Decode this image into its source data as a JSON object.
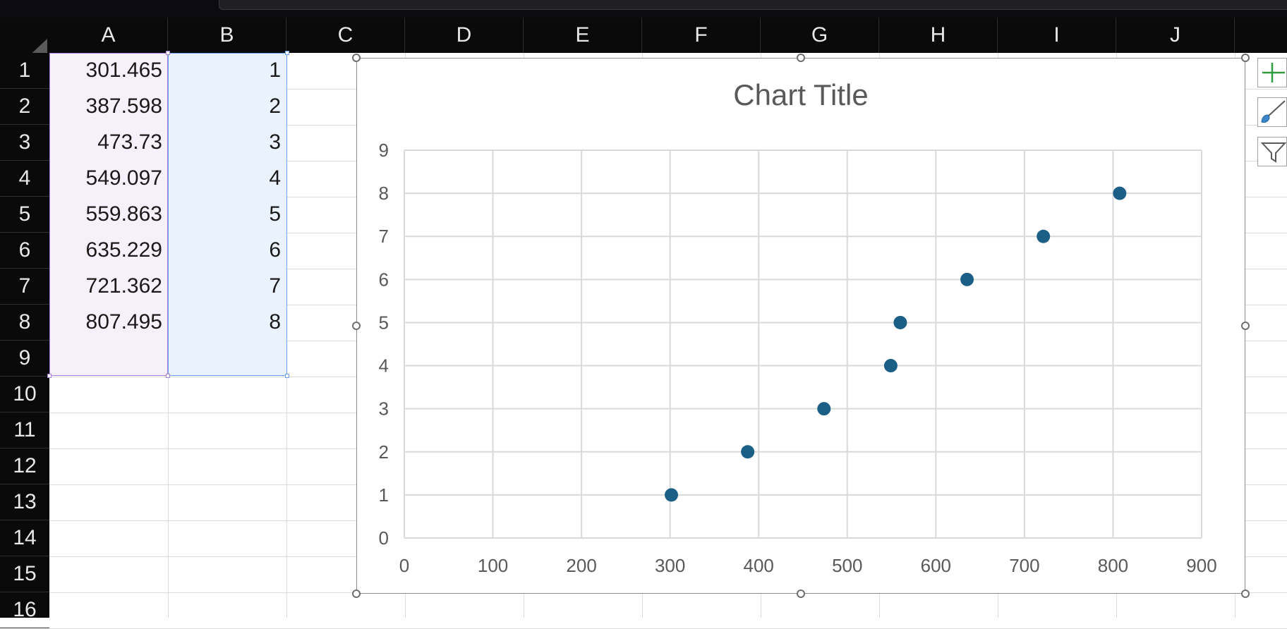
{
  "column_headers": [
    "A",
    "B",
    "C",
    "D",
    "E",
    "F",
    "G",
    "H",
    "I",
    "J"
  ],
  "row_headers": [
    "1",
    "2",
    "3",
    "4",
    "5",
    "6",
    "7",
    "8",
    "9",
    "10",
    "11",
    "12",
    "13",
    "14",
    "15",
    "16"
  ],
  "cells": {
    "A": [
      "301.465",
      "387.598",
      "473.73",
      "549.097",
      "559.863",
      "635.229",
      "721.362",
      "807.495"
    ],
    "B": [
      "1",
      "2",
      "3",
      "4",
      "5",
      "6",
      "7",
      "8"
    ]
  },
  "chart_side_buttons": [
    "add-chart-element-icon",
    "chart-style-brush-icon",
    "chart-filter-icon"
  ],
  "colors": {
    "marker": "#1b5e86",
    "gridline": "#d9d9d9",
    "axis_text": "#595959",
    "selection_a": "#a97fdc",
    "selection_b": "#6b9fe6",
    "plus_icon": "#2e9e3e",
    "brush_icon": "#3a86c8"
  },
  "chart_data": {
    "type": "scatter",
    "title": "Chart Title",
    "xlabel": "",
    "ylabel": "",
    "xlim": [
      0,
      900
    ],
    "ylim": [
      0,
      9
    ],
    "x_ticks": [
      "0",
      "100",
      "200",
      "300",
      "400",
      "500",
      "600",
      "700",
      "800",
      "900"
    ],
    "y_ticks": [
      "0",
      "1",
      "2",
      "3",
      "4",
      "5",
      "6",
      "7",
      "8",
      "9"
    ],
    "grid": true,
    "legend": "none",
    "series": [
      {
        "x": [
          301.465,
          387.598,
          473.73,
          549.097,
          559.863,
          635.229,
          721.362,
          807.495
        ],
        "y": [
          1,
          2,
          3,
          4,
          5,
          6,
          7,
          8
        ]
      }
    ]
  }
}
